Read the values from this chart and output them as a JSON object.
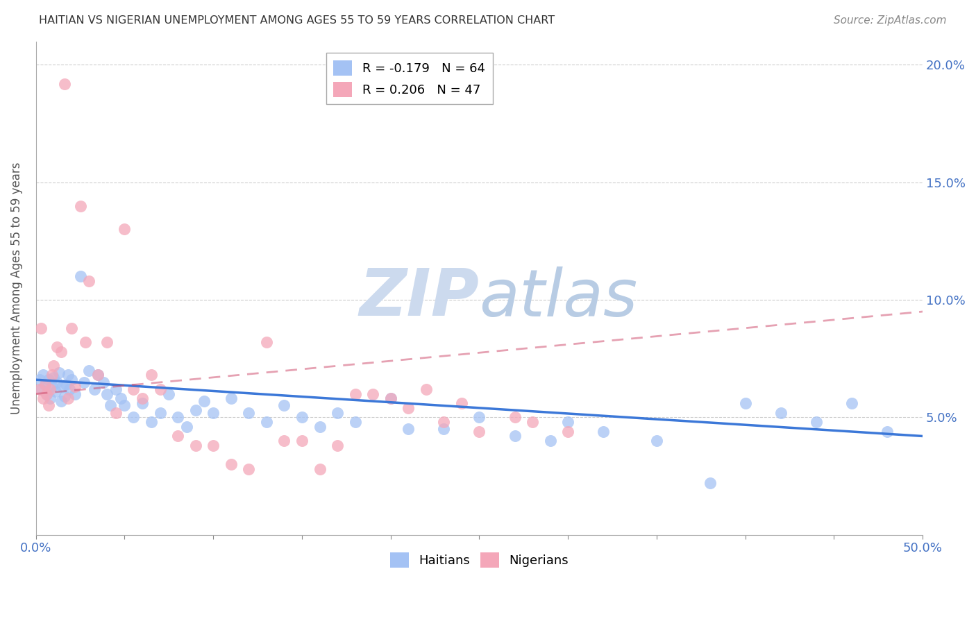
{
  "title": "HAITIAN VS NIGERIAN UNEMPLOYMENT AMONG AGES 55 TO 59 YEARS CORRELATION CHART",
  "source": "Source: ZipAtlas.com",
  "ylabel": "Unemployment Among Ages 55 to 59 years",
  "xmin": 0.0,
  "xmax": 0.5,
  "ymin": 0.0,
  "ymax": 0.21,
  "haitian_color": "#a4c2f4",
  "nigerian_color": "#f4a7b9",
  "haitian_line_color": "#3c78d8",
  "nigerian_line_color": "#cc4466",
  "nigerian_line_dash_color": "#bbbbbb",
  "haitian_R": -0.179,
  "haitian_N": 64,
  "nigerian_R": 0.206,
  "nigerian_N": 47,
  "watermark": "ZIPatlas",
  "watermark_color": "#ccdaee",
  "haitian_line_y0": 0.066,
  "haitian_line_y1": 0.042,
  "nigerian_line_y0": 0.06,
  "nigerian_line_y1": 0.095,
  "haitian_x": [
    0.002,
    0.003,
    0.004,
    0.005,
    0.006,
    0.007,
    0.008,
    0.009,
    0.01,
    0.011,
    0.012,
    0.013,
    0.014,
    0.015,
    0.016,
    0.017,
    0.018,
    0.019,
    0.02,
    0.022,
    0.025,
    0.027,
    0.03,
    0.033,
    0.035,
    0.038,
    0.04,
    0.042,
    0.045,
    0.048,
    0.05,
    0.055,
    0.06,
    0.065,
    0.07,
    0.075,
    0.08,
    0.085,
    0.09,
    0.095,
    0.1,
    0.11,
    0.12,
    0.13,
    0.14,
    0.15,
    0.16,
    0.17,
    0.18,
    0.2,
    0.21,
    0.23,
    0.25,
    0.27,
    0.29,
    0.3,
    0.32,
    0.35,
    0.38,
    0.4,
    0.42,
    0.44,
    0.46,
    0.48
  ],
  "haitian_y": [
    0.066,
    0.062,
    0.068,
    0.064,
    0.06,
    0.066,
    0.058,
    0.063,
    0.067,
    0.061,
    0.065,
    0.069,
    0.057,
    0.063,
    0.059,
    0.064,
    0.068,
    0.062,
    0.066,
    0.06,
    0.11,
    0.065,
    0.07,
    0.062,
    0.068,
    0.065,
    0.06,
    0.055,
    0.062,
    0.058,
    0.055,
    0.05,
    0.056,
    0.048,
    0.052,
    0.06,
    0.05,
    0.046,
    0.053,
    0.057,
    0.052,
    0.058,
    0.052,
    0.048,
    0.055,
    0.05,
    0.046,
    0.052,
    0.048,
    0.058,
    0.045,
    0.045,
    0.05,
    0.042,
    0.04,
    0.048,
    0.044,
    0.04,
    0.022,
    0.056,
    0.052,
    0.048,
    0.056,
    0.044
  ],
  "nigerian_x": [
    0.002,
    0.003,
    0.004,
    0.005,
    0.006,
    0.007,
    0.008,
    0.009,
    0.01,
    0.012,
    0.014,
    0.016,
    0.018,
    0.02,
    0.022,
    0.025,
    0.028,
    0.03,
    0.035,
    0.04,
    0.045,
    0.05,
    0.055,
    0.06,
    0.065,
    0.07,
    0.08,
    0.09,
    0.1,
    0.11,
    0.12,
    0.13,
    0.14,
    0.15,
    0.16,
    0.17,
    0.18,
    0.19,
    0.2,
    0.21,
    0.22,
    0.23,
    0.24,
    0.25,
    0.27,
    0.28,
    0.3
  ],
  "nigerian_y": [
    0.062,
    0.088,
    0.058,
    0.064,
    0.06,
    0.055,
    0.062,
    0.068,
    0.072,
    0.08,
    0.078,
    0.192,
    0.058,
    0.088,
    0.063,
    0.14,
    0.082,
    0.108,
    0.068,
    0.082,
    0.052,
    0.13,
    0.062,
    0.058,
    0.068,
    0.062,
    0.042,
    0.038,
    0.038,
    0.03,
    0.028,
    0.082,
    0.04,
    0.04,
    0.028,
    0.038,
    0.06,
    0.06,
    0.058,
    0.054,
    0.062,
    0.048,
    0.056,
    0.044,
    0.05,
    0.048,
    0.044
  ]
}
